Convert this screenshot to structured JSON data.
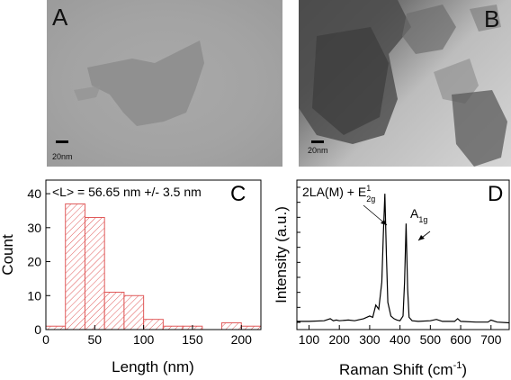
{
  "panels": {
    "a": {
      "letter": "A",
      "scale_label": "20nm"
    },
    "b": {
      "letter": "B",
      "scale_label": "20nm"
    },
    "c": {
      "letter": "C",
      "annotation": "<L> = 56.65 nm +/- 3.5 nm"
    },
    "d": {
      "letter": "D",
      "peak1_label": "2LA(M) + E",
      "peak1_sup": "1",
      "peak1_sub": "2g",
      "peak2_label": "A",
      "peak2_sub": "1g"
    }
  },
  "chart_data": [
    {
      "type": "bar",
      "bins": [
        [
          0,
          20
        ],
        [
          20,
          40
        ],
        [
          40,
          60
        ],
        [
          60,
          80
        ],
        [
          80,
          100
        ],
        [
          100,
          120
        ],
        [
          120,
          140
        ],
        [
          140,
          160
        ],
        [
          160,
          180
        ],
        [
          180,
          200
        ],
        [
          200,
          220
        ]
      ],
      "values": [
        1,
        37,
        33,
        11,
        10,
        3,
        1,
        1,
        0,
        2,
        1
      ],
      "xlabel": "Length (nm)",
      "ylabel": "Count",
      "xlim": [
        0,
        220
      ],
      "ylim": [
        0,
        44
      ],
      "xticks": [
        0,
        50,
        100,
        150,
        200
      ],
      "yticks": [
        0,
        10,
        20,
        30,
        40
      ],
      "bar_color": "#e05a5a",
      "grid": false
    },
    {
      "type": "line",
      "xlabel": "Raman Shift (cm",
      "xlabel_sup": "-1",
      "xlabel_close": ")",
      "ylabel": "Intensity (a.u.)",
      "xlim": [
        60,
        760
      ],
      "ylim": [
        0,
        1.1
      ],
      "xticks": [
        100,
        200,
        300,
        400,
        500,
        600,
        700
      ],
      "series": [
        {
          "x": [
            60,
            100,
            150,
            170,
            180,
            190,
            200,
            230,
            250,
            280,
            300,
            310,
            320,
            330,
            340,
            345,
            350,
            355,
            360,
            370,
            380,
            390,
            400,
            410,
            415,
            420,
            425,
            430,
            440,
            460,
            500,
            520,
            540,
            580,
            590,
            600,
            650,
            690,
            700,
            720,
            760
          ],
          "y": [
            0.06,
            0.06,
            0.065,
            0.08,
            0.065,
            0.07,
            0.065,
            0.07,
            0.065,
            0.08,
            0.1,
            0.09,
            0.18,
            0.15,
            0.35,
            0.7,
            1.0,
            0.55,
            0.2,
            0.1,
            0.08,
            0.07,
            0.065,
            0.1,
            0.35,
            0.78,
            0.3,
            0.09,
            0.065,
            0.06,
            0.065,
            0.075,
            0.06,
            0.06,
            0.08,
            0.06,
            0.055,
            0.055,
            0.07,
            0.055,
            0.05
          ]
        }
      ],
      "line_color": "#000000",
      "grid": false
    }
  ]
}
